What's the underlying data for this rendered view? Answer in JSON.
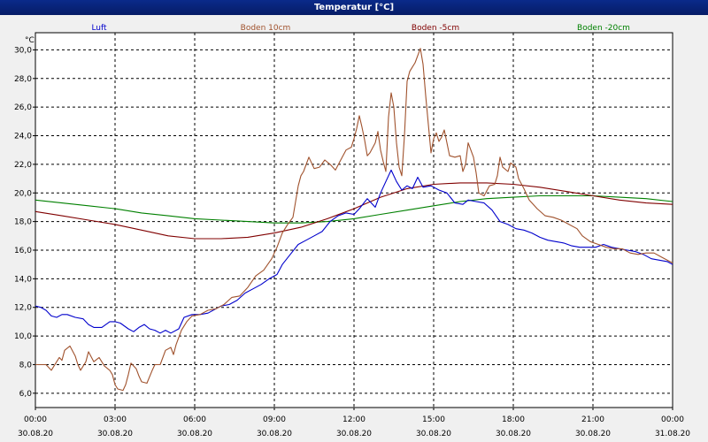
{
  "window": {
    "title": "Temperatur [°C]"
  },
  "chart_data": {
    "type": "line",
    "title": "Temperatur [°C]",
    "ylabel": "°C",
    "xlabel": "",
    "ylim": [
      5.0,
      31.2
    ],
    "xlim_hours": [
      0,
      24
    ],
    "grid": true,
    "legend_position": "top",
    "y_ticks": [
      "6,0",
      "8,0",
      "10,0",
      "12,0",
      "14,0",
      "16,0",
      "18,0",
      "20,0",
      "22,0",
      "24,0",
      "26,0",
      "28,0",
      "30,0"
    ],
    "x_ticks": [
      {
        "time": "00:00",
        "date": "30.08.20"
      },
      {
        "time": "03:00",
        "date": "30.08.20"
      },
      {
        "time": "06:00",
        "date": "30.08.20"
      },
      {
        "time": "09:00",
        "date": "30.08.20"
      },
      {
        "time": "12:00",
        "date": "30.08.20"
      },
      {
        "time": "15:00",
        "date": "30.08.20"
      },
      {
        "time": "18:00",
        "date": "30.08.20"
      },
      {
        "time": "21:00",
        "date": "30.08.20"
      },
      {
        "time": "00:00",
        "date": "31.08.20"
      }
    ],
    "series": [
      {
        "name": "Luft",
        "color": "#0000cc",
        "points": [
          [
            0,
            12.1
          ],
          [
            0.2,
            12.0
          ],
          [
            0.4,
            11.8
          ],
          [
            0.6,
            11.4
          ],
          [
            0.8,
            11.3
          ],
          [
            1.0,
            11.5
          ],
          [
            1.2,
            11.5
          ],
          [
            1.5,
            11.3
          ],
          [
            1.8,
            11.2
          ],
          [
            2.0,
            10.8
          ],
          [
            2.2,
            10.6
          ],
          [
            2.5,
            10.6
          ],
          [
            2.8,
            11.0
          ],
          [
            3.0,
            11.0
          ],
          [
            3.2,
            10.9
          ],
          [
            3.5,
            10.5
          ],
          [
            3.7,
            10.3
          ],
          [
            3.9,
            10.6
          ],
          [
            4.1,
            10.8
          ],
          [
            4.3,
            10.5
          ],
          [
            4.5,
            10.4
          ],
          [
            4.7,
            10.2
          ],
          [
            4.9,
            10.4
          ],
          [
            5.1,
            10.2
          ],
          [
            5.4,
            10.5
          ],
          [
            5.6,
            11.3
          ],
          [
            5.9,
            11.5
          ],
          [
            6.2,
            11.5
          ],
          [
            6.5,
            11.6
          ],
          [
            6.8,
            11.9
          ],
          [
            7.0,
            12.1
          ],
          [
            7.3,
            12.2
          ],
          [
            7.6,
            12.5
          ],
          [
            7.9,
            13.0
          ],
          [
            8.2,
            13.3
          ],
          [
            8.5,
            13.6
          ],
          [
            8.8,
            14.0
          ],
          [
            9.1,
            14.3
          ],
          [
            9.3,
            15.0
          ],
          [
            9.6,
            15.7
          ],
          [
            9.9,
            16.4
          ],
          [
            10.2,
            16.7
          ],
          [
            10.5,
            17.0
          ],
          [
            10.8,
            17.3
          ],
          [
            11.1,
            18.0
          ],
          [
            11.4,
            18.4
          ],
          [
            11.7,
            18.6
          ],
          [
            12.0,
            18.5
          ],
          [
            12.2,
            18.9
          ],
          [
            12.5,
            19.6
          ],
          [
            12.8,
            19.0
          ],
          [
            13.0,
            20.0
          ],
          [
            13.2,
            20.8
          ],
          [
            13.4,
            21.6
          ],
          [
            13.6,
            20.8
          ],
          [
            13.8,
            20.2
          ],
          [
            14.0,
            20.5
          ],
          [
            14.2,
            20.3
          ],
          [
            14.4,
            21.1
          ],
          [
            14.6,
            20.4
          ],
          [
            14.9,
            20.5
          ],
          [
            15.2,
            20.2
          ],
          [
            15.5,
            20.0
          ],
          [
            15.8,
            19.3
          ],
          [
            16.1,
            19.2
          ],
          [
            16.3,
            19.5
          ],
          [
            16.6,
            19.4
          ],
          [
            16.9,
            19.3
          ],
          [
            17.2,
            18.8
          ],
          [
            17.5,
            18.0
          ],
          [
            17.8,
            17.8
          ],
          [
            18.1,
            17.5
          ],
          [
            18.4,
            17.4
          ],
          [
            18.7,
            17.2
          ],
          [
            19.0,
            16.9
          ],
          [
            19.3,
            16.7
          ],
          [
            19.6,
            16.6
          ],
          [
            19.9,
            16.5
          ],
          [
            20.2,
            16.3
          ],
          [
            20.5,
            16.2
          ],
          [
            20.8,
            16.2
          ],
          [
            21.1,
            16.2
          ],
          [
            21.4,
            16.4
          ],
          [
            21.7,
            16.2
          ],
          [
            22.0,
            16.1
          ],
          [
            22.3,
            16.0
          ],
          [
            22.6,
            15.9
          ],
          [
            22.9,
            15.7
          ],
          [
            23.2,
            15.4
          ],
          [
            23.5,
            15.3
          ],
          [
            23.8,
            15.2
          ],
          [
            24.0,
            15.0
          ]
        ]
      },
      {
        "name": "Boden 10cm",
        "color": "#a0522d",
        "points": [
          [
            0,
            8.0
          ],
          [
            0.2,
            8.0
          ],
          [
            0.4,
            8.0
          ],
          [
            0.6,
            7.6
          ],
          [
            0.8,
            8.2
          ],
          [
            0.9,
            8.5
          ],
          [
            1.0,
            8.3
          ],
          [
            1.1,
            9.0
          ],
          [
            1.3,
            9.3
          ],
          [
            1.5,
            8.6
          ],
          [
            1.6,
            8.0
          ],
          [
            1.7,
            7.6
          ],
          [
            1.9,
            8.2
          ],
          [
            2.0,
            8.9
          ],
          [
            2.2,
            8.2
          ],
          [
            2.4,
            8.5
          ],
          [
            2.6,
            7.9
          ],
          [
            2.8,
            7.6
          ],
          [
            2.9,
            7.3
          ],
          [
            3.0,
            6.6
          ],
          [
            3.1,
            6.3
          ],
          [
            3.3,
            6.2
          ],
          [
            3.4,
            6.6
          ],
          [
            3.5,
            7.3
          ],
          [
            3.6,
            8.1
          ],
          [
            3.8,
            7.7
          ],
          [
            3.9,
            7.2
          ],
          [
            4.0,
            6.8
          ],
          [
            4.2,
            6.7
          ],
          [
            4.4,
            7.6
          ],
          [
            4.5,
            8.0
          ],
          [
            4.7,
            8.0
          ],
          [
            4.9,
            9.0
          ],
          [
            5.1,
            9.2
          ],
          [
            5.2,
            8.7
          ],
          [
            5.3,
            9.4
          ],
          [
            5.5,
            10.4
          ],
          [
            5.7,
            11.0
          ],
          [
            5.9,
            11.4
          ],
          [
            6.2,
            11.5
          ],
          [
            6.5,
            11.8
          ],
          [
            6.8,
            11.9
          ],
          [
            7.1,
            12.2
          ],
          [
            7.4,
            12.7
          ],
          [
            7.7,
            12.8
          ],
          [
            8.0,
            13.4
          ],
          [
            8.3,
            14.2
          ],
          [
            8.6,
            14.6
          ],
          [
            8.9,
            15.4
          ],
          [
            9.1,
            16.2
          ],
          [
            9.3,
            17.2
          ],
          [
            9.5,
            17.8
          ],
          [
            9.7,
            18.3
          ],
          [
            9.9,
            20.5
          ],
          [
            10.0,
            21.2
          ],
          [
            10.1,
            21.5
          ],
          [
            10.3,
            22.5
          ],
          [
            10.5,
            21.7
          ],
          [
            10.7,
            21.8
          ],
          [
            10.9,
            22.3
          ],
          [
            11.1,
            22.0
          ],
          [
            11.3,
            21.6
          ],
          [
            11.5,
            22.3
          ],
          [
            11.7,
            23.0
          ],
          [
            11.9,
            23.2
          ],
          [
            12.0,
            23.8
          ],
          [
            12.1,
            24.5
          ],
          [
            12.2,
            25.4
          ],
          [
            12.3,
            24.6
          ],
          [
            12.4,
            23.7
          ],
          [
            12.5,
            22.6
          ],
          [
            12.6,
            22.8
          ],
          [
            12.8,
            23.5
          ],
          [
            12.9,
            24.3
          ],
          [
            13.0,
            23.0
          ],
          [
            13.1,
            22.2
          ],
          [
            13.2,
            21.5
          ],
          [
            13.3,
            25.3
          ],
          [
            13.4,
            27.0
          ],
          [
            13.5,
            26.0
          ],
          [
            13.6,
            23.5
          ],
          [
            13.7,
            21.8
          ],
          [
            13.8,
            21.2
          ],
          [
            13.9,
            24.0
          ],
          [
            14.0,
            27.8
          ],
          [
            14.1,
            28.5
          ],
          [
            14.2,
            28.8
          ],
          [
            14.3,
            29.1
          ],
          [
            14.4,
            29.6
          ],
          [
            14.5,
            30.1
          ],
          [
            14.6,
            29.0
          ],
          [
            14.7,
            26.8
          ],
          [
            14.8,
            24.8
          ],
          [
            14.9,
            22.8
          ],
          [
            15.0,
            23.8
          ],
          [
            15.1,
            24.2
          ],
          [
            15.2,
            23.6
          ],
          [
            15.3,
            23.9
          ],
          [
            15.4,
            24.4
          ],
          [
            15.6,
            22.6
          ],
          [
            15.8,
            22.5
          ],
          [
            16.0,
            22.6
          ],
          [
            16.1,
            21.5
          ],
          [
            16.2,
            22.0
          ],
          [
            16.3,
            23.5
          ],
          [
            16.5,
            22.5
          ],
          [
            16.6,
            21.4
          ],
          [
            16.7,
            20.0
          ],
          [
            16.9,
            19.8
          ],
          [
            17.1,
            20.5
          ],
          [
            17.3,
            20.6
          ],
          [
            17.4,
            21.2
          ],
          [
            17.5,
            22.5
          ],
          [
            17.6,
            21.8
          ],
          [
            17.8,
            21.5
          ],
          [
            17.9,
            22.1
          ],
          [
            18.1,
            21.8
          ],
          [
            18.2,
            21.0
          ],
          [
            18.4,
            20.3
          ],
          [
            18.6,
            19.5
          ],
          [
            18.9,
            18.9
          ],
          [
            19.2,
            18.4
          ],
          [
            19.5,
            18.3
          ],
          [
            19.8,
            18.1
          ],
          [
            20.1,
            17.8
          ],
          [
            20.4,
            17.5
          ],
          [
            20.6,
            17.0
          ],
          [
            20.9,
            16.6
          ],
          [
            21.2,
            16.4
          ],
          [
            21.5,
            16.2
          ],
          [
            21.8,
            16.1
          ],
          [
            22.1,
            16.1
          ],
          [
            22.4,
            15.8
          ],
          [
            22.7,
            15.7
          ],
          [
            23.0,
            15.8
          ],
          [
            23.3,
            15.8
          ],
          [
            23.6,
            15.5
          ],
          [
            24.0,
            15.1
          ]
        ]
      },
      {
        "name": "Boden -5cm",
        "color": "#800000",
        "points": [
          [
            0,
            18.7
          ],
          [
            1,
            18.4
          ],
          [
            2,
            18.1
          ],
          [
            3,
            17.8
          ],
          [
            4,
            17.4
          ],
          [
            5,
            17.0
          ],
          [
            6,
            16.8
          ],
          [
            7,
            16.8
          ],
          [
            8,
            16.9
          ],
          [
            9,
            17.2
          ],
          [
            10,
            17.6
          ],
          [
            11,
            18.2
          ],
          [
            12,
            18.9
          ],
          [
            13,
            19.7
          ],
          [
            14,
            20.3
          ],
          [
            15,
            20.6
          ],
          [
            16,
            20.7
          ],
          [
            17,
            20.7
          ],
          [
            18,
            20.6
          ],
          [
            19,
            20.4
          ],
          [
            20,
            20.1
          ],
          [
            21,
            19.8
          ],
          [
            22,
            19.5
          ],
          [
            23,
            19.3
          ],
          [
            24,
            19.2
          ]
        ]
      },
      {
        "name": "Boden -20cm",
        "color": "#008000",
        "points": [
          [
            0,
            19.5
          ],
          [
            1,
            19.3
          ],
          [
            2,
            19.1
          ],
          [
            3,
            18.9
          ],
          [
            4,
            18.6
          ],
          [
            5,
            18.4
          ],
          [
            6,
            18.2
          ],
          [
            7,
            18.1
          ],
          [
            8,
            18.0
          ],
          [
            9,
            17.9
          ],
          [
            10,
            17.9
          ],
          [
            11,
            18.0
          ],
          [
            12,
            18.2
          ],
          [
            13,
            18.5
          ],
          [
            14,
            18.8
          ],
          [
            15,
            19.1
          ],
          [
            16,
            19.4
          ],
          [
            17,
            19.6
          ],
          [
            18,
            19.7
          ],
          [
            19,
            19.8
          ],
          [
            20,
            19.8
          ],
          [
            21,
            19.8
          ],
          [
            22,
            19.7
          ],
          [
            23,
            19.6
          ],
          [
            24,
            19.4
          ]
        ]
      }
    ]
  }
}
